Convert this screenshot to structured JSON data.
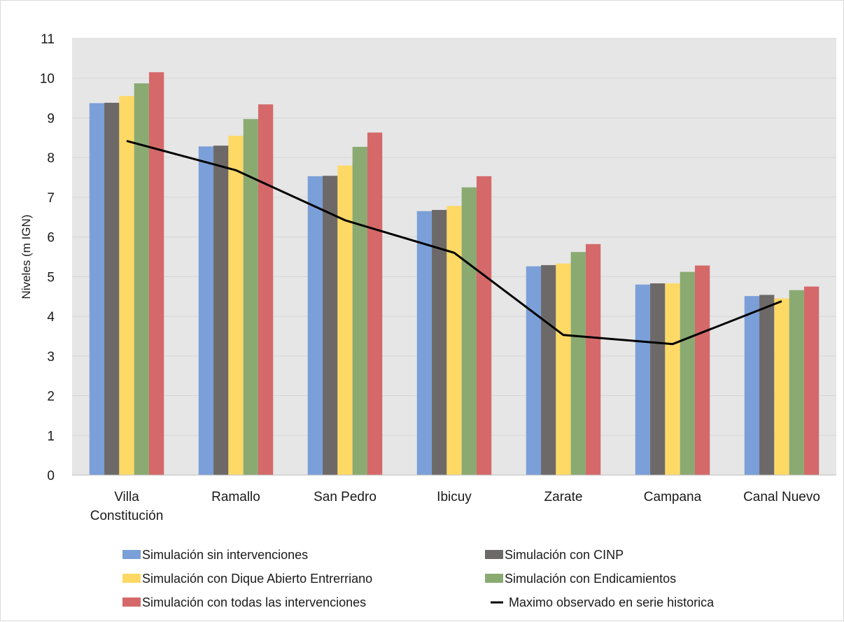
{
  "chart_data": {
    "type": "bar",
    "ylabel": "Niveles (m IGN)",
    "ylim": [
      0,
      11
    ],
    "yticks": [
      0,
      1,
      2,
      3,
      4,
      5,
      6,
      7,
      8,
      9,
      10,
      11
    ],
    "grid": true,
    "legend_position": "bottom",
    "categories": [
      [
        "Villa",
        "Constitución"
      ],
      [
        "Ramallo"
      ],
      [
        "San Pedro"
      ],
      [
        "Ibicuy"
      ],
      [
        "Zarate"
      ],
      [
        "Campana"
      ],
      [
        "Canal Nuevo"
      ]
    ],
    "series": [
      {
        "name": "Simulación sin intervenciones",
        "color": "#7b9fd8",
        "values": [
          9.37,
          8.28,
          7.53,
          6.65,
          5.26,
          4.8,
          4.51
        ]
      },
      {
        "name": "Simulación con CINP",
        "color": "#6d6968",
        "values": [
          9.38,
          8.3,
          7.54,
          6.68,
          5.29,
          4.83,
          4.54
        ]
      },
      {
        "name": "Simulación con  Dique Abierto Entrerriano",
        "color": "#ffd966",
        "values": [
          9.55,
          8.55,
          7.8,
          6.78,
          5.33,
          4.83,
          4.45
        ]
      },
      {
        "name": "Simulación con Endicamientos",
        "color": "#8aaa72",
        "values": [
          9.87,
          8.97,
          8.27,
          7.25,
          5.62,
          5.12,
          4.66
        ]
      },
      {
        "name": "Simulación con todas las intervenciones",
        "color": "#d5696a",
        "values": [
          10.15,
          9.34,
          8.63,
          7.53,
          5.82,
          5.28,
          4.75
        ]
      }
    ],
    "line_series": {
      "name": "Maximo observado en serie historica",
      "color": "#000000",
      "values": [
        8.42,
        7.68,
        6.42,
        5.6,
        3.53,
        3.3,
        4.38
      ]
    }
  }
}
